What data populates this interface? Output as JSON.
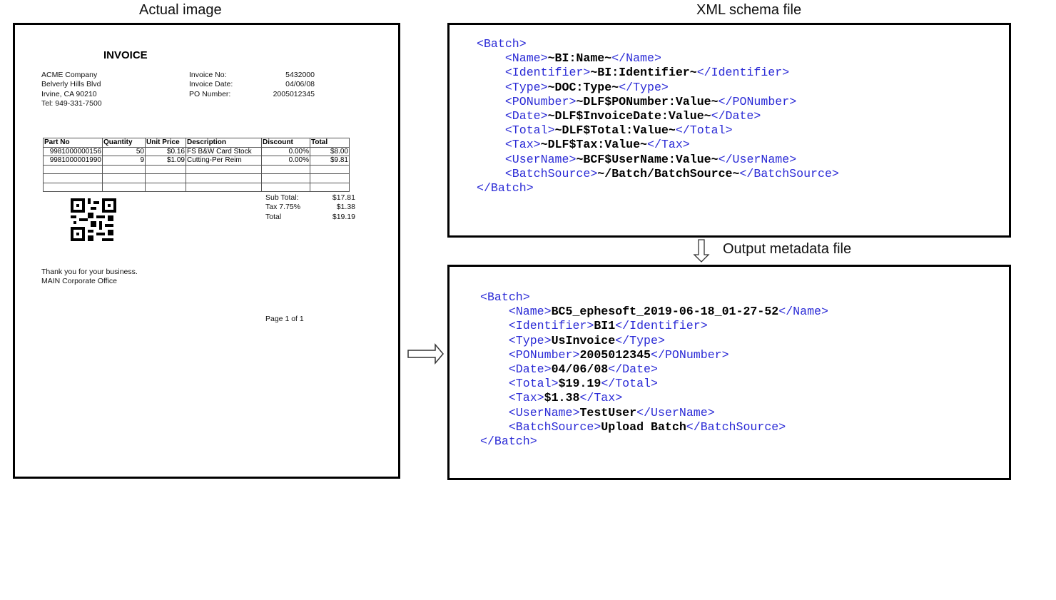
{
  "titles": {
    "actual_image": "Actual image",
    "schema": "XML schema file",
    "output": "Output metadata file"
  },
  "invoice": {
    "heading": "INVOICE",
    "address": [
      "ACME Company",
      "Belverly Hills Blvd",
      "Irvine, CA 90210",
      "Tel: 949-331-7500"
    ],
    "fields": [
      {
        "label": "Invoice No:",
        "value": "5432000"
      },
      {
        "label": "Invoice Date:",
        "value": "04/06/08"
      },
      {
        "label": "PO Number:",
        "value": "2005012345"
      }
    ],
    "table": {
      "headers": [
        "Part No",
        "Quantity",
        "Unit Price",
        "Description",
        "Discount",
        "Total"
      ],
      "rows": [
        [
          "9981000000156",
          "50",
          "$0.16",
          "FS B&W Card Stock",
          "0.00%",
          "$8.00"
        ],
        [
          "9981000001990",
          "9",
          "$1.09",
          "Cutting-Per Reim",
          "0.00%",
          "$9.81"
        ]
      ]
    },
    "summary": [
      {
        "label": "Sub Total:",
        "value": "$17.81"
      },
      {
        "label": "Tax 7.75%",
        "value": "$1.38"
      },
      {
        "label": "Total",
        "value": "$19.19"
      }
    ],
    "footer": [
      "Thank you for your business.",
      "MAIN Corporate Office"
    ],
    "page": "Page 1 of 1"
  },
  "schema": {
    "root": "Batch",
    "fields": [
      {
        "tag": "Name",
        "value": "~BI:Name~"
      },
      {
        "tag": "Identifier",
        "value": "~BI:Identifier~"
      },
      {
        "tag": "Type",
        "value": "~DOC:Type~"
      },
      {
        "tag": "PONumber",
        "value": "~DLF$PONumber:Value~"
      },
      {
        "tag": "Date",
        "value": "~DLF$InvoiceDate:Value~"
      },
      {
        "tag": "Total",
        "value": "~DLF$Total:Value~"
      },
      {
        "tag": "Tax",
        "value": "~DLF$Tax:Value~"
      },
      {
        "tag": "UserName",
        "value": "~BCF$UserName:Value~"
      },
      {
        "tag": "BatchSource",
        "value": "~/Batch/BatchSource~"
      }
    ]
  },
  "output": {
    "root": "Batch",
    "fields": [
      {
        "tag": "Name",
        "value": "BC5_ephesoft_2019-06-18_01-27-52"
      },
      {
        "tag": "Identifier",
        "value": "BI1"
      },
      {
        "tag": "Type",
        "value": "UsInvoice"
      },
      {
        "tag": "PONumber",
        "value": "2005012345"
      },
      {
        "tag": "Date",
        "value": "04/06/08"
      },
      {
        "tag": "Total",
        "value": "$19.19"
      },
      {
        "tag": "Tax",
        "value": "$1.38"
      },
      {
        "tag": "UserName",
        "value": "TestUser"
      },
      {
        "tag": "BatchSource",
        "value": "Upload Batch"
      }
    ]
  },
  "colors": {
    "tag": "#2b2bd6",
    "value": "#000000"
  }
}
